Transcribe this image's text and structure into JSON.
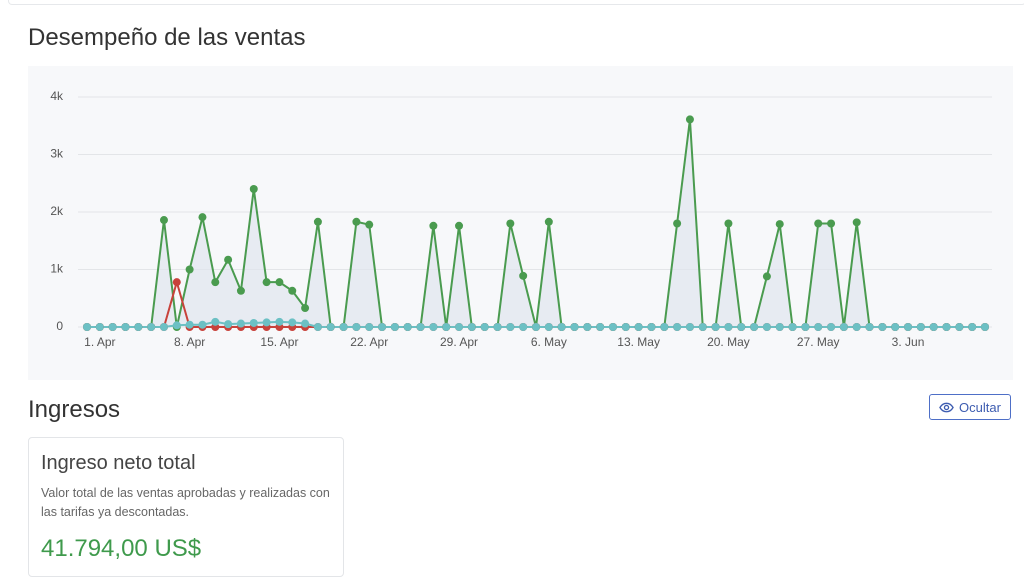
{
  "chart_data": {
    "type": "line",
    "title": "Desempeño de las ventas",
    "x": [
      "31. Mar",
      "1. Apr",
      "2. Apr",
      "3. Apr",
      "4. Apr",
      "5. Apr",
      "6. Apr",
      "7. Apr",
      "8. Apr",
      "9. Apr",
      "10. Apr",
      "11. Apr",
      "12. Apr",
      "13. Apr",
      "14. Apr",
      "15. Apr",
      "16. Apr",
      "17. Apr",
      "18. Apr",
      "19. Apr",
      "20. Apr",
      "21. Apr",
      "22. Apr",
      "23. Apr",
      "24. Apr",
      "25. Apr",
      "26. Apr",
      "27. Apr",
      "28. Apr",
      "29. Apr",
      "30. Apr",
      "1. May",
      "2. May",
      "3. May",
      "4. May",
      "5. May",
      "6. May",
      "7. May",
      "8. May",
      "9. May",
      "10. May",
      "11. May",
      "12. May",
      "13. May",
      "14. May",
      "15. May",
      "16. May",
      "17. May",
      "18. May",
      "19. May",
      "20. May",
      "21. May",
      "22. May",
      "23. May",
      "24. May",
      "25. May",
      "26. May",
      "27. May",
      "28. May",
      "29. May",
      "30. May",
      "31. May",
      "1. Jun",
      "2. Jun",
      "3. Jun",
      "4. Jun",
      "5. Jun",
      "6. Jun",
      "7. Jun",
      "8. Jun",
      "9. Jun"
    ],
    "xticks": [
      "1. Apr",
      "8. Apr",
      "15. Apr",
      "22. Apr",
      "29. Apr",
      "6. May",
      "13. May",
      "20. May",
      "27. May",
      "3. Jun"
    ],
    "series": [
      {
        "color": "#4a9b4f",
        "area": true,
        "values": [
          0,
          0,
          0,
          0,
          0,
          0,
          1860,
          0,
          1000,
          1910,
          780,
          1170,
          630,
          2400,
          780,
          780,
          630,
          330,
          1830,
          0,
          0,
          1830,
          1780,
          0,
          0,
          0,
          0,
          1760,
          0,
          1760,
          0,
          0,
          0,
          1800,
          890,
          0,
          1830,
          0,
          0,
          0,
          0,
          0,
          0,
          0,
          0,
          0,
          1800,
          3610,
          0,
          0,
          1800,
          0,
          0,
          880,
          1790,
          0,
          0,
          1800,
          1800,
          0,
          1820,
          0,
          0,
          0,
          0,
          0,
          0,
          0,
          0,
          0,
          0
        ]
      },
      {
        "color": "#c8423b",
        "values": [
          0,
          0,
          0,
          0,
          0,
          0,
          0,
          780,
          0,
          0,
          0,
          0,
          0,
          0,
          0,
          0,
          0,
          0,
          0,
          0,
          0,
          0,
          0,
          0,
          0,
          0,
          0,
          0,
          0,
          0,
          0,
          0,
          0,
          0,
          0,
          0,
          0,
          0,
          0,
          0,
          0,
          0,
          0,
          0,
          0,
          0,
          0,
          0,
          0,
          0,
          0,
          0,
          0,
          0,
          0,
          0,
          0,
          0,
          0,
          0,
          0,
          0,
          0,
          0,
          0,
          0,
          0,
          0,
          0,
          0,
          0
        ]
      },
      {
        "color": "#6cc0c4",
        "values": [
          0,
          0,
          0,
          0,
          0,
          0,
          0,
          30,
          40,
          40,
          90,
          50,
          60,
          70,
          80,
          90,
          80,
          60,
          0,
          0,
          0,
          0,
          0,
          0,
          0,
          0,
          0,
          0,
          0,
          0,
          0,
          0,
          0,
          0,
          0,
          0,
          0,
          0,
          0,
          0,
          0,
          0,
          0,
          0,
          0,
          0,
          0,
          0,
          0,
          0,
          0,
          0,
          0,
          0,
          0,
          0,
          0,
          0,
          0,
          0,
          0,
          0,
          0,
          0,
          0,
          0,
          0,
          0,
          0,
          0,
          0
        ]
      }
    ],
    "ylim": [
      0,
      4000
    ],
    "yticks": [
      0,
      {
        "value": 1000,
        "label": "1k"
      },
      {
        "value": 2000,
        "label": "2k"
      },
      {
        "value": 3000,
        "label": "3k"
      },
      {
        "value": 4000,
        "label": "4k"
      }
    ],
    "grid": true
  },
  "revenue_section": {
    "title": "Ingresos",
    "button": "Ocultar",
    "card": {
      "title": "Ingreso neto total",
      "description": "Valor total de las ventas aprobadas y realizadas con las tarifas ya descontadas.",
      "amount": "41.794,00 US$"
    }
  }
}
